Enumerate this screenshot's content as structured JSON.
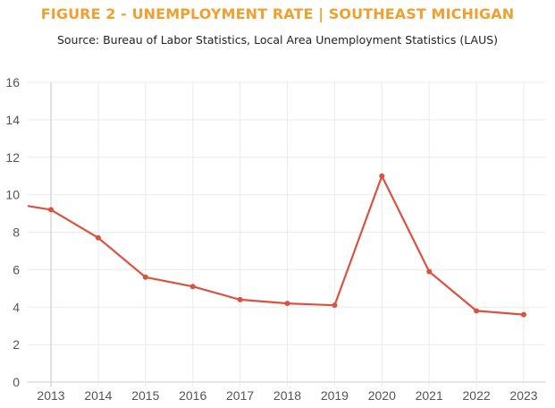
{
  "header": {
    "title": "FIGURE 2 - UNEMPLOYMENT RATE | SOUTHEAST MICHIGAN",
    "subtitle": "Source: Bureau of Labor Statistics, Local Area Unemployment Statistics (LAUS)"
  },
  "colors": {
    "title": "#f0a030",
    "line": "#d9533f",
    "grid": "#ebebeb",
    "axis": "#cccccc"
  },
  "chart_data": {
    "type": "line",
    "title": "FIGURE 2 - UNEMPLOYMENT RATE | SOUTHEAST MICHIGAN",
    "subtitle": "Source: Bureau of Labor Statistics, Local Area Unemployment Statistics (LAUS)",
    "xlabel": "",
    "ylabel": "",
    "categories": [
      "2013",
      "2014",
      "2015",
      "2016",
      "2017",
      "2018",
      "2019",
      "2020",
      "2021",
      "2022",
      "2023"
    ],
    "series": [
      {
        "values": [
          9.2,
          7.7,
          5.6,
          5.1,
          4.4,
          4.2,
          4.1,
          11.0,
          5.9,
          3.8,
          3.6
        ]
      }
    ],
    "lead_in_value": 9.4,
    "ylim": [
      0,
      16
    ],
    "yticks": [
      0,
      2,
      4,
      6,
      8,
      10,
      12,
      14,
      16
    ],
    "grid": true,
    "legend": "none"
  }
}
